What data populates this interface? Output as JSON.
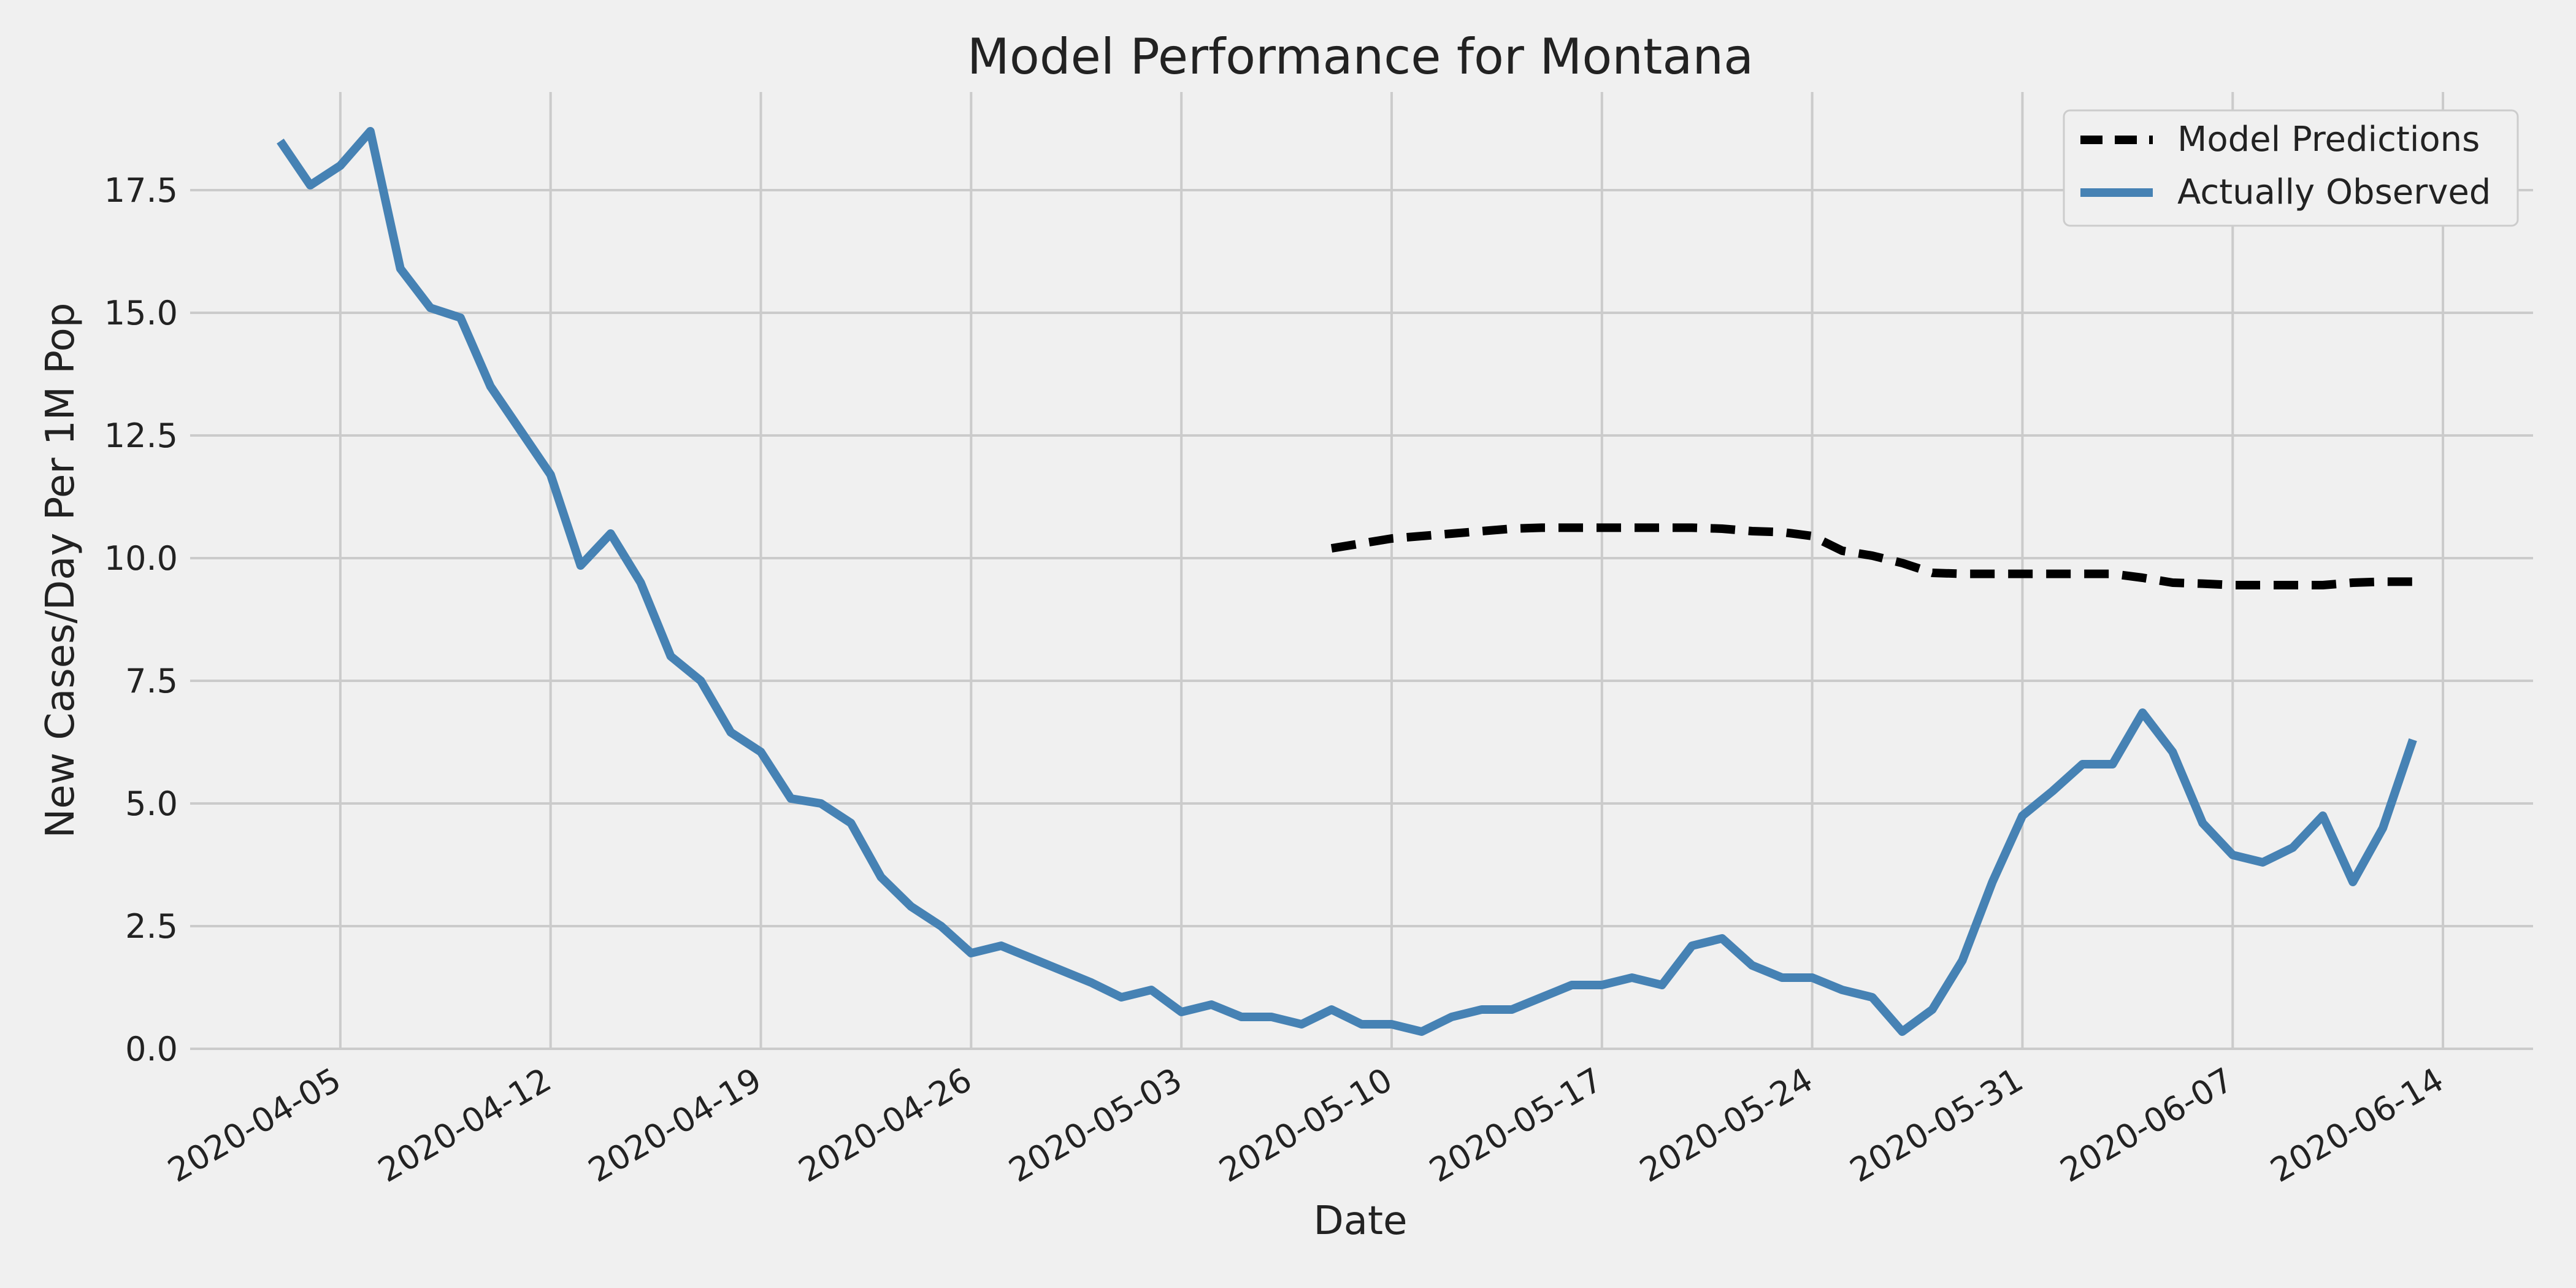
{
  "chart_data": {
    "type": "line",
    "title": "Model Performance for Montana",
    "xlabel": "Date",
    "ylabel": "New Cases/Day Per 1M Pop",
    "x_ticks": [
      "2020-04-05",
      "2020-04-12",
      "2020-04-19",
      "2020-04-26",
      "2020-05-03",
      "2020-05-10",
      "2020-05-17",
      "2020-05-24",
      "2020-05-31",
      "2020-06-07",
      "2020-06-14"
    ],
    "y_ticks": [
      "0.0",
      "2.5",
      "5.0",
      "7.5",
      "10.0",
      "12.5",
      "15.0",
      "17.5"
    ],
    "xlim": [
      "2020-03-31",
      "2020-06-17"
    ],
    "ylim": [
      0,
      19.5
    ],
    "grid": true,
    "legend_position": "top-right",
    "series": [
      {
        "name": "Model Predictions",
        "style": "dashed",
        "color": "#000000",
        "x": [
          "2020-05-08",
          "2020-05-09",
          "2020-05-10",
          "2020-05-11",
          "2020-05-12",
          "2020-05-13",
          "2020-05-14",
          "2020-05-15",
          "2020-05-16",
          "2020-05-17",
          "2020-05-18",
          "2020-05-19",
          "2020-05-20",
          "2020-05-21",
          "2020-05-22",
          "2020-05-23",
          "2020-05-24",
          "2020-05-25",
          "2020-05-26",
          "2020-05-27",
          "2020-05-28",
          "2020-05-29",
          "2020-05-30",
          "2020-05-31",
          "2020-06-01",
          "2020-06-02",
          "2020-06-03",
          "2020-06-04",
          "2020-06-05",
          "2020-06-06",
          "2020-06-07",
          "2020-06-08",
          "2020-06-09",
          "2020-06-10",
          "2020-06-11",
          "2020-06-12",
          "2020-06-13"
        ],
        "y": [
          10.2,
          10.3,
          10.4,
          10.45,
          10.5,
          10.55,
          10.6,
          10.62,
          10.62,
          10.62,
          10.62,
          10.62,
          10.62,
          10.6,
          10.55,
          10.53,
          10.45,
          10.15,
          10.05,
          9.9,
          9.7,
          9.68,
          9.68,
          9.68,
          9.68,
          9.68,
          9.68,
          9.6,
          9.5,
          9.48,
          9.45,
          9.45,
          9.45,
          9.45,
          9.5,
          9.52,
          9.52
        ]
      },
      {
        "name": "Actually Observed",
        "style": "solid",
        "color": "#4682b4",
        "x": [
          "2020-04-03",
          "2020-04-04",
          "2020-04-05",
          "2020-04-06",
          "2020-04-07",
          "2020-04-08",
          "2020-04-09",
          "2020-04-10",
          "2020-04-11",
          "2020-04-12",
          "2020-04-13",
          "2020-04-14",
          "2020-04-15",
          "2020-04-16",
          "2020-04-17",
          "2020-04-18",
          "2020-04-19",
          "2020-04-20",
          "2020-04-21",
          "2020-04-22",
          "2020-04-23",
          "2020-04-24",
          "2020-04-25",
          "2020-04-26",
          "2020-04-27",
          "2020-04-28",
          "2020-04-29",
          "2020-04-30",
          "2020-05-01",
          "2020-05-02",
          "2020-05-03",
          "2020-05-04",
          "2020-05-05",
          "2020-05-06",
          "2020-05-07",
          "2020-05-08",
          "2020-05-09",
          "2020-05-10",
          "2020-05-11",
          "2020-05-12",
          "2020-05-13",
          "2020-05-14",
          "2020-05-15",
          "2020-05-16",
          "2020-05-17",
          "2020-05-18",
          "2020-05-19",
          "2020-05-20",
          "2020-05-21",
          "2020-05-22",
          "2020-05-23",
          "2020-05-24",
          "2020-05-25",
          "2020-05-26",
          "2020-05-27",
          "2020-05-28",
          "2020-05-29",
          "2020-05-30",
          "2020-05-31",
          "2020-06-01",
          "2020-06-02",
          "2020-06-03",
          "2020-06-04",
          "2020-06-05",
          "2020-06-06",
          "2020-06-07",
          "2020-06-08",
          "2020-06-09",
          "2020-06-10",
          "2020-06-11",
          "2020-06-12",
          "2020-06-13"
        ],
        "y": [
          18.5,
          17.6,
          18.0,
          18.7,
          15.9,
          15.1,
          14.9,
          13.5,
          12.6,
          11.7,
          9.85,
          10.5,
          9.5,
          8.0,
          7.5,
          6.45,
          6.05,
          5.1,
          5.0,
          4.6,
          3.5,
          2.9,
          2.5,
          1.95,
          2.1,
          1.85,
          1.6,
          1.35,
          1.05,
          1.2,
          0.75,
          0.9,
          0.65,
          0.65,
          0.5,
          0.8,
          0.5,
          0.5,
          0.35,
          0.65,
          0.8,
          0.8,
          1.05,
          1.3,
          1.3,
          1.45,
          1.3,
          2.1,
          2.25,
          1.7,
          1.45,
          1.45,
          1.2,
          1.05,
          0.35,
          0.8,
          1.8,
          3.4,
          4.75,
          5.25,
          5.8,
          5.8,
          6.85,
          6.05,
          4.6,
          3.95,
          3.8,
          4.1,
          4.75,
          3.4,
          4.5,
          6.3
        ]
      }
    ]
  }
}
